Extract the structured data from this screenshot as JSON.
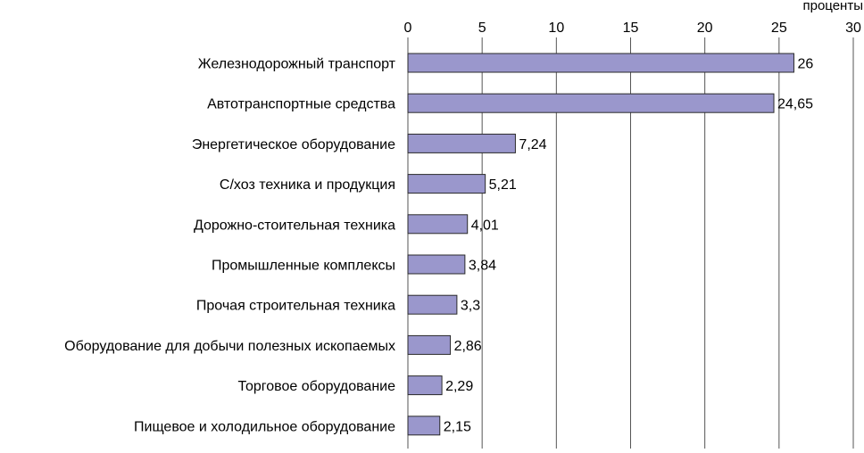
{
  "chart_data": {
    "type": "bar",
    "orientation": "horizontal",
    "axis_unit_label": "проценты",
    "x_axis_position": "top",
    "xlim": [
      0,
      30
    ],
    "x_ticks": [
      "0",
      "5",
      "10",
      "15",
      "20",
      "25",
      "30"
    ],
    "grid": true,
    "categories": [
      "Железнодорожный транспорт",
      "Автотранспортные средства",
      "Энергетическое оборудование",
      "С/хоз техника и продукция",
      "Дорожно-стоительная техника",
      "Промышленные комплексы",
      "Прочая строительная техника",
      "Оборудование для добычи полезных ископаемых",
      "Торговое оборудование",
      "Пищевое и холодильное оборудование"
    ],
    "values": [
      26,
      24.65,
      7.24,
      5.21,
      4.01,
      3.84,
      3.3,
      2.86,
      2.29,
      2.15
    ],
    "value_labels": [
      "26",
      "24,65",
      "7,24",
      "5,21",
      "4,01",
      "3,84",
      "3,3",
      "2,86",
      "2,29",
      "2,15"
    ],
    "colors": {
      "bar_fill": "#9a97cc",
      "bar_stroke": "#2a2a2a",
      "grid": "#555555"
    }
  }
}
